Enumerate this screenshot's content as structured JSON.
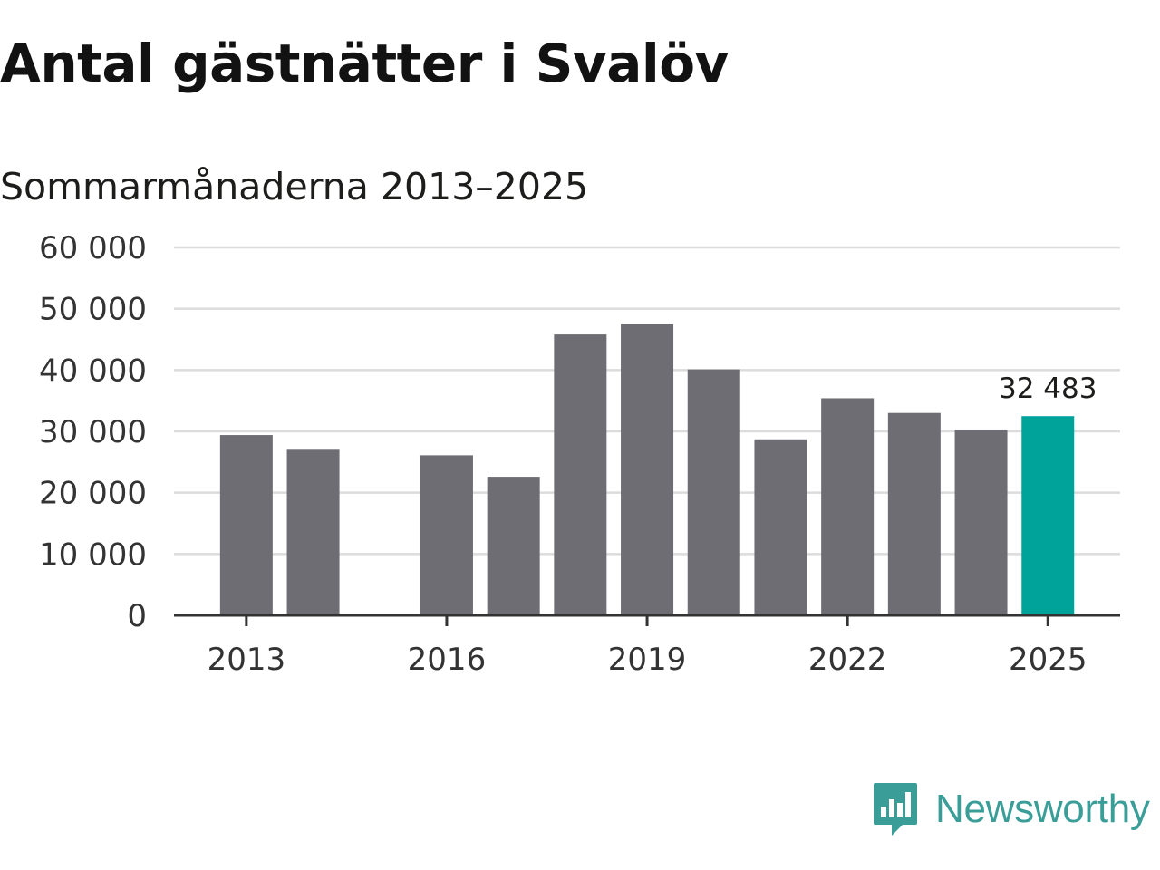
{
  "title": "Antal gästnätter i Svalöv",
  "subtitle": "Sommarmånaderna 2013–2025",
  "brand": {
    "name": "Newsworthy",
    "color": "#3a9d98",
    "icon": "newsworthy-logo-icon"
  },
  "colors": {
    "bar": "#6e6d73",
    "highlight": "#00a39a",
    "grid": "#dcdcdc",
    "axis": "#333333"
  },
  "chart_data": {
    "type": "bar",
    "title": "Antal gästnätter i Svalöv",
    "subtitle": "Sommarmånaderna 2013–2025",
    "xlabel": "",
    "ylabel": "",
    "ylim": [
      0,
      60000
    ],
    "y_ticks": [
      0,
      10000,
      20000,
      30000,
      40000,
      50000,
      60000
    ],
    "y_tick_labels": [
      "0",
      "10 000",
      "20 000",
      "30 000",
      "40 000",
      "50 000",
      "60 000"
    ],
    "x_tick_labels": [
      "2013",
      "2016",
      "2019",
      "2022",
      "2025"
    ],
    "grid": true,
    "categories": [
      "2013",
      "2014",
      "2015",
      "2016",
      "2017",
      "2018",
      "2019",
      "2020",
      "2021",
      "2022",
      "2023",
      "2024",
      "2025"
    ],
    "values": [
      29400,
      27000,
      null,
      26100,
      22600,
      45800,
      47500,
      40100,
      28700,
      35400,
      33000,
      30300,
      32483
    ],
    "highlight_index": 12,
    "data_labels": [
      {
        "category": "2025",
        "text": "32 483"
      }
    ]
  }
}
